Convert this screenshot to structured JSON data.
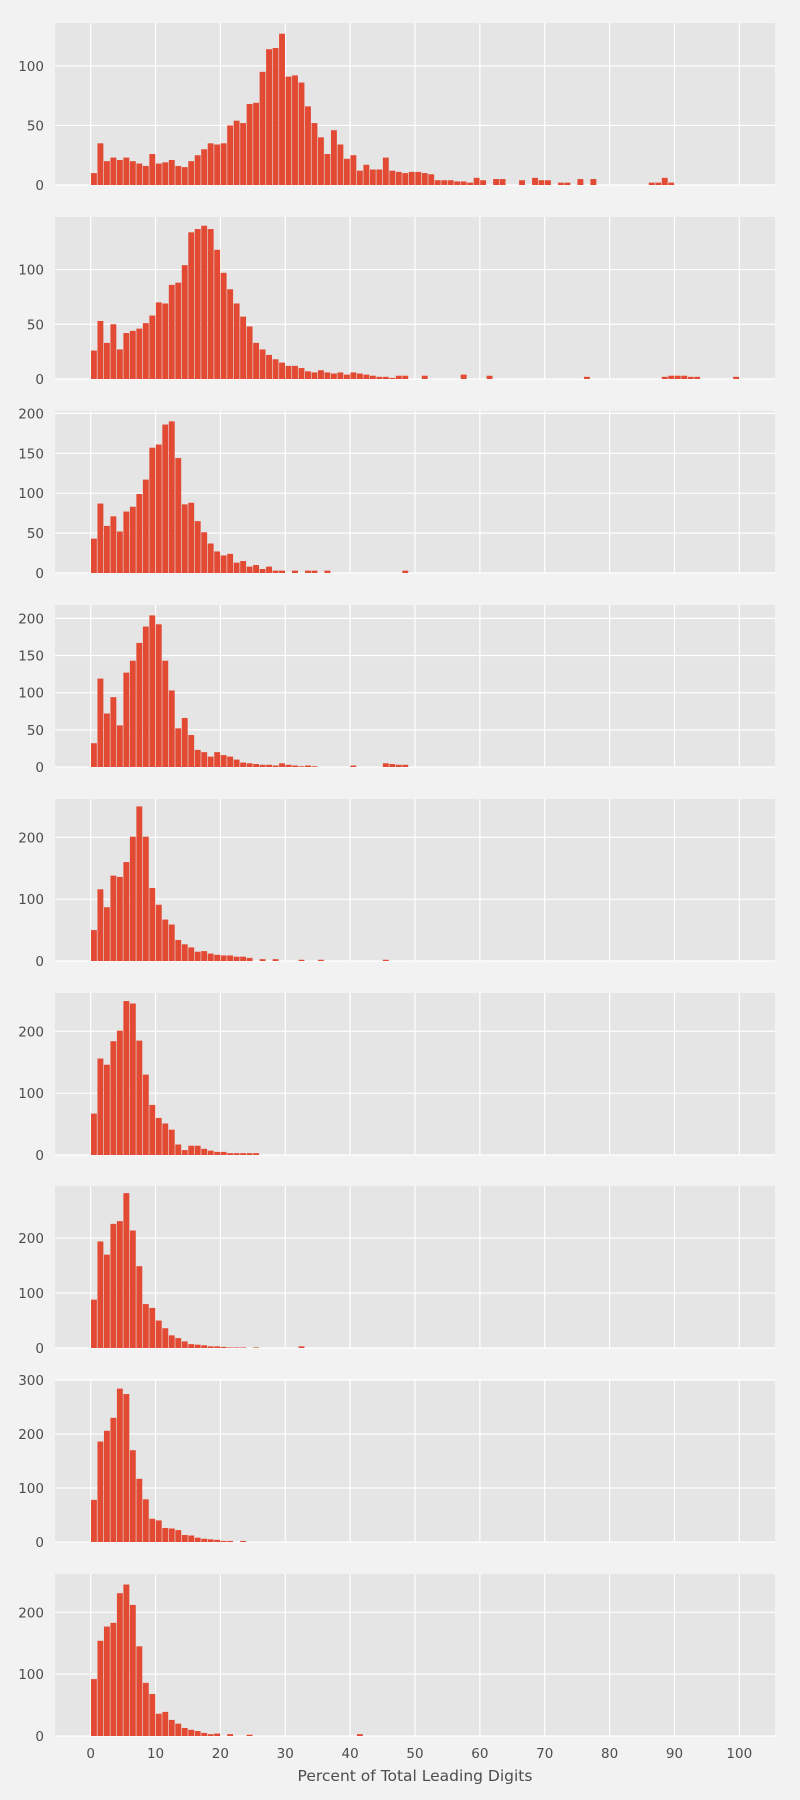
{
  "figure": {
    "background": "#f2f2f2",
    "panel_background": "#e5e5e5",
    "grid_color": "#ffffff",
    "bar_color": "#e24a33"
  },
  "chart_data": [
    {
      "type": "bar",
      "x_start": 0,
      "bin_width": 1,
      "xlim": [
        -5.5,
        105.5
      ],
      "ylim": [
        0,
        136
      ],
      "yticks": [
        0,
        50,
        100
      ],
      "show_xticks": false,
      "grid": true,
      "xlabel": "",
      "ylabel": "",
      "title": "",
      "values": [
        10,
        35,
        20,
        23,
        21,
        23,
        20,
        18,
        16,
        26,
        18,
        19,
        21,
        16,
        15,
        20,
        25,
        30,
        35,
        34,
        35,
        50,
        54,
        52,
        68,
        69,
        95,
        114,
        115,
        127,
        91,
        92,
        86,
        66,
        52,
        40,
        26,
        46,
        34,
        22,
        25,
        12,
        17,
        13,
        13,
        23,
        12,
        11,
        10,
        11,
        11,
        10,
        9,
        4,
        4,
        4,
        3,
        3,
        2,
        6,
        4,
        0,
        5,
        5,
        0,
        0,
        4,
        0,
        6,
        4,
        4,
        0,
        2,
        2,
        0,
        5,
        0,
        5,
        0,
        0,
        0,
        0,
        0,
        0,
        0,
        0,
        2,
        2,
        6,
        2
      ]
    },
    {
      "type": "bar",
      "x_start": 0,
      "bin_width": 1,
      "xlim": [
        -5.5,
        105.5
      ],
      "ylim": [
        0,
        148
      ],
      "yticks": [
        0,
        50,
        100
      ],
      "show_xticks": false,
      "grid": true,
      "xlabel": "",
      "ylabel": "",
      "title": "",
      "values": [
        26,
        53,
        33,
        50,
        27,
        42,
        44,
        46,
        51,
        58,
        70,
        69,
        86,
        88,
        104,
        134,
        137,
        140,
        137,
        118,
        97,
        82,
        69,
        57,
        48,
        33,
        27,
        22,
        18,
        15,
        12,
        12,
        10,
        7,
        6,
        8,
        6,
        5,
        6,
        4,
        6,
        5,
        4,
        3,
        2,
        2,
        1,
        3,
        3,
        0,
        0,
        3,
        0,
        0,
        0,
        0,
        0,
        4,
        0,
        0,
        0,
        3,
        0,
        0,
        0,
        0,
        0,
        0,
        0,
        0,
        0,
        0,
        0,
        0,
        0,
        0,
        2,
        0,
        0,
        0,
        0,
        0,
        0,
        0,
        0,
        0,
        0,
        0,
        2,
        3,
        3,
        3,
        2,
        2,
        0,
        0,
        0,
        0,
        0,
        2,
        0
      ]
    },
    {
      "type": "bar",
      "x_start": 0,
      "bin_width": 1,
      "xlim": [
        -5.5,
        105.5
      ],
      "ylim": [
        0,
        203
      ],
      "yticks": [
        0,
        50,
        100,
        150,
        200
      ],
      "show_xticks": false,
      "grid": true,
      "xlabel": "",
      "ylabel": "",
      "title": "",
      "values": [
        43,
        87,
        59,
        71,
        52,
        77,
        83,
        99,
        117,
        157,
        161,
        186,
        190,
        144,
        86,
        88,
        65,
        51,
        37,
        27,
        22,
        24,
        13,
        15,
        8,
        10,
        5,
        8,
        3,
        3,
        0,
        3,
        0,
        3,
        3,
        0,
        3,
        0,
        0,
        0,
        0,
        0,
        0,
        0,
        0,
        0,
        0,
        0,
        3
      ]
    },
    {
      "type": "bar",
      "x_start": 0,
      "bin_width": 1,
      "xlim": [
        -5.5,
        105.5
      ],
      "ylim": [
        0,
        218
      ],
      "yticks": [
        0,
        50,
        100,
        150,
        200
      ],
      "show_xticks": false,
      "grid": true,
      "xlabel": "",
      "ylabel": "",
      "title": "",
      "values": [
        32,
        119,
        72,
        94,
        56,
        127,
        143,
        167,
        189,
        204,
        192,
        143,
        103,
        52,
        66,
        43,
        23,
        20,
        14,
        20,
        16,
        14,
        10,
        6,
        5,
        4,
        3,
        3,
        2,
        5,
        3,
        2,
        1,
        2,
        1,
        0,
        0,
        0,
        0,
        0,
        2,
        0,
        0,
        0,
        0,
        5,
        4,
        3,
        3
      ]
    },
    {
      "type": "bar",
      "x_start": 0,
      "bin_width": 1,
      "xlim": [
        -5.5,
        105.5
      ],
      "ylim": [
        0,
        262
      ],
      "yticks": [
        0,
        100,
        200
      ],
      "show_xticks": false,
      "grid": true,
      "xlabel": "",
      "ylabel": "",
      "title": "",
      "values": [
        50,
        116,
        87,
        138,
        136,
        160,
        201,
        250,
        201,
        118,
        91,
        67,
        59,
        34,
        27,
        22,
        15,
        16,
        12,
        10,
        9,
        9,
        7,
        7,
        5,
        0,
        3,
        0,
        3,
        0,
        0,
        0,
        2,
        0,
        0,
        2,
        0,
        0,
        0,
        0,
        0,
        0,
        0,
        0,
        0,
        2,
        0,
        0,
        0,
        0
      ]
    },
    {
      "type": "bar",
      "x_start": 0,
      "bin_width": 1,
      "xlim": [
        -5.5,
        105.5
      ],
      "ylim": [
        0,
        262
      ],
      "yticks": [
        0,
        100,
        200
      ],
      "show_xticks": false,
      "grid": true,
      "xlabel": "",
      "ylabel": "",
      "title": "",
      "values": [
        67,
        156,
        146,
        184,
        201,
        249,
        245,
        185,
        130,
        81,
        60,
        51,
        41,
        17,
        8,
        15,
        15,
        10,
        7,
        5,
        5,
        3,
        3,
        3,
        3,
        3
      ]
    },
    {
      "type": "bar",
      "x_start": 0,
      "bin_width": 1,
      "xlim": [
        -5.5,
        105.5
      ],
      "ylim": [
        0,
        295
      ],
      "yticks": [
        0,
        100,
        200
      ],
      "show_xticks": false,
      "grid": true,
      "xlabel": "",
      "ylabel": "",
      "title": "",
      "values": [
        88,
        194,
        170,
        226,
        231,
        282,
        214,
        149,
        80,
        73,
        50,
        36,
        23,
        18,
        12,
        7,
        6,
        5,
        3,
        3,
        2,
        1,
        1,
        1,
        0,
        1,
        0,
        0,
        0,
        0,
        0,
        0,
        3
      ]
    },
    {
      "type": "bar",
      "x_start": 0,
      "bin_width": 1,
      "xlim": [
        -5.5,
        105.5
      ],
      "ylim": [
        0,
        300
      ],
      "yticks": [
        0,
        100,
        200,
        300
      ],
      "show_xticks": false,
      "grid": true,
      "xlabel": "",
      "ylabel": "",
      "title": "",
      "values": [
        78,
        186,
        206,
        230,
        284,
        274,
        170,
        117,
        79,
        43,
        40,
        26,
        25,
        22,
        13,
        12,
        8,
        6,
        5,
        4,
        2,
        2,
        0,
        2
      ]
    },
    {
      "type": "bar",
      "x_start": 0,
      "bin_width": 1,
      "xlim": [
        -5.5,
        105.5
      ],
      "ylim": [
        0,
        262
      ],
      "yticks": [
        0,
        100,
        200
      ],
      "show_xticks": true,
      "xticks": [
        0,
        10,
        20,
        30,
        40,
        50,
        60,
        70,
        80,
        90,
        100
      ],
      "grid": true,
      "xlabel": "Percent of Total Leading Digits",
      "ylabel": "",
      "title": "",
      "values": [
        92,
        154,
        177,
        183,
        231,
        245,
        212,
        145,
        86,
        68,
        36,
        39,
        26,
        20,
        13,
        10,
        8,
        5,
        3,
        4,
        0,
        3,
        0,
        0,
        2,
        0,
        0,
        0,
        0,
        0,
        0,
        0,
        0,
        0,
        0,
        0,
        0,
        0,
        0,
        0,
        0,
        3
      ]
    }
  ]
}
